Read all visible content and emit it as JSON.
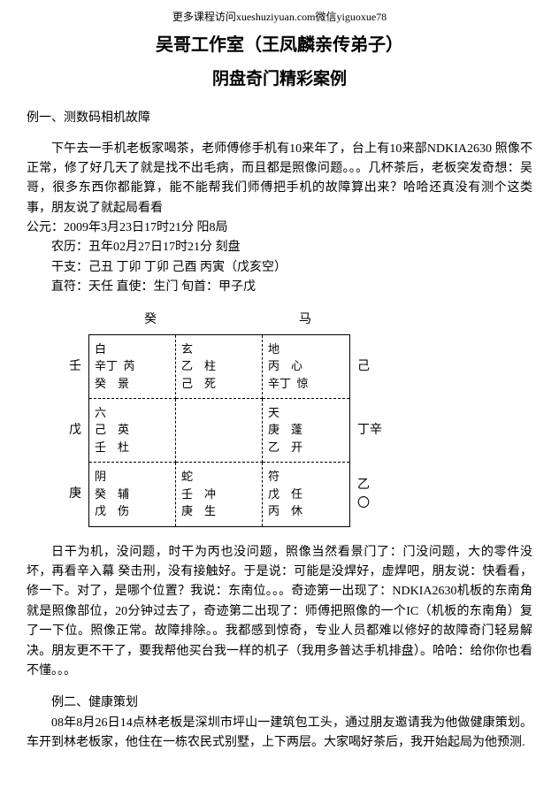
{
  "banner": "更多课程访问xueshuziyuan.com微信yiguoxue78",
  "title1": "吴哥工作室（王凤麟亲传弟子）",
  "title2": "阴盘奇门精彩案例",
  "case1": {
    "heading": "例一、测数码相机故障",
    "para1": "下午去一手机老板家喝茶，老师傅修手机有10来年了，台上有10来部NDKIA2630 照像不正常，修了好几天了就是找不出毛病，而且都是照像问题。。。几杯茶后，老板突发奇想：吴哥，很多东西你都能算，能不能帮我们师傅把手机的故障算出来？哈哈还真没有测个这类事，朋友说了就起局看看",
    "line_gy": "公元：2009年3月23日17时21分  阳8局",
    "line_nl": "农历：丑年02月27日17时21分  刻盘",
    "line_gz": "干支：己丑 丁卯 丁卯 己酉 丙寅（戊亥空）",
    "line_zf": "直符：天任 直使：生门 旬首：甲子戊"
  },
  "chart": {
    "top_label1": "癸",
    "top_label2": "马",
    "left": [
      "壬",
      "戊",
      "庚"
    ],
    "right": [
      "己",
      "丁辛",
      "乙\n〇"
    ],
    "cells": [
      "白\n辛丁  芮\n癸    景",
      "玄\n乙    柱\n己    死",
      "地\n丙    心\n辛丁  惊",
      "六\n己    英\n壬    杜",
      "",
      "天\n庚    蓬\n乙    开",
      "阴\n癸    辅\n戊    伤",
      "蛇\n壬    冲\n庚    生",
      "符\n戊    任\n丙    休"
    ]
  },
  "case1b": {
    "para": "日干为机，没问题，时干为丙也没问题，照像当然看景门了：门没问题，大的零件没坏，再看辛入幕 癸击刑，没有接触好。于是说：可能是没焊好，虚焊吧，朋友说：快看看，修一下。对了，是哪个位置？我说：东南位。。。奇迹第一出现了：NDKIA2630机板的东南角就是照像部位，20分钟过去了，奇迹第二出现了：师傅把照像的一个IC（机板的东南角）复了一下位。照像正常。故障排除。。我都感到惊奇，专业人员都难以修好的故障奇门轻易解决。朋友更不干了，要我帮他买台我一样的机子（我用多普达手机排盘）。哈哈：给你你也看不懂。。。"
  },
  "case2": {
    "heading": "例二、健康策划",
    "para": "08年8月26日14点林老板是深圳市坪山一建筑包工头，通过朋友邀请我为他做健康策划。车开到林老板家，他住在一栋农民式别墅，上下两层。大家喝好茶后，我开始起局为他预测."
  }
}
